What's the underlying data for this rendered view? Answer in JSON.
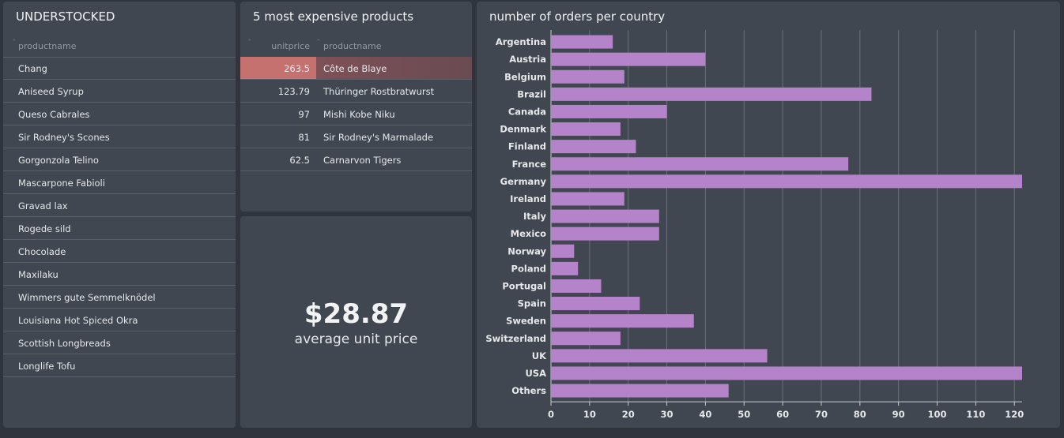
{
  "understocked": {
    "title": "UNDERSTOCKED",
    "column_label": "productname",
    "items": [
      "Chang",
      "Aniseed Syrup",
      "Queso Cabrales",
      "Sir Rodney's Scones",
      "Gorgonzola Telino",
      "Mascarpone Fabioli",
      "Gravad lax",
      "Rogede sild",
      "Chocolade",
      "Maxilaku",
      "Wimmers gute Semmelknödel",
      "Louisiana Hot Spiced Okra",
      "Scottish Longbreads",
      "Longlife Tofu"
    ]
  },
  "expensive": {
    "title": "5 most expensive products",
    "columns": [
      "unitprice",
      "productname"
    ],
    "rows": [
      {
        "unitprice": "263.5",
        "productname": "Côte de Blaye"
      },
      {
        "unitprice": "123.79",
        "productname": "Thüringer Rostbratwurst"
      },
      {
        "unitprice": "97",
        "productname": "Mishi Kobe Niku"
      },
      {
        "unitprice": "81",
        "productname": "Sir Rodney's Marmalade"
      },
      {
        "unitprice": "62.5",
        "productname": "Carnarvon Tigers"
      }
    ],
    "highlight_color": "#c5716f"
  },
  "average": {
    "value": "$28.87",
    "label": "average unit price"
  },
  "chart_data": {
    "type": "bar",
    "orientation": "horizontal",
    "title": "number of orders per country",
    "categories": [
      "Argentina",
      "Austria",
      "Belgium",
      "Brazil",
      "Canada",
      "Denmark",
      "Finland",
      "France",
      "Germany",
      "Ireland",
      "Italy",
      "Mexico",
      "Norway",
      "Poland",
      "Portugal",
      "Spain",
      "Sweden",
      "Switzerland",
      "UK",
      "USA",
      "Others"
    ],
    "values": [
      16,
      40,
      19,
      83,
      30,
      18,
      22,
      77,
      122,
      19,
      28,
      28,
      6,
      7,
      13,
      23,
      37,
      18,
      56,
      122,
      46
    ],
    "xlim": [
      0,
      122
    ],
    "xticks": [
      0,
      10,
      20,
      30,
      40,
      50,
      60,
      70,
      80,
      90,
      100,
      110,
      120
    ],
    "grid": true,
    "bar_color": "#b583c9"
  }
}
